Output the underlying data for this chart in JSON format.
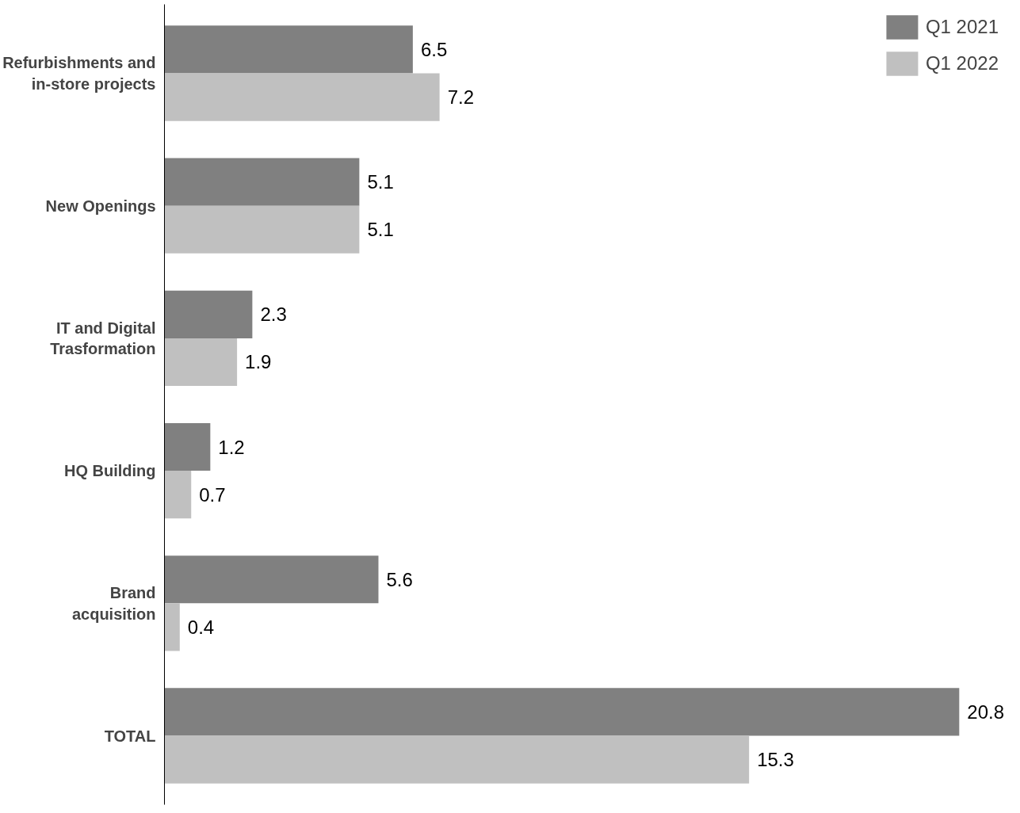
{
  "chart_data": {
    "type": "bar",
    "orientation": "horizontal",
    "categories": [
      "Refurbishments and in-store projects",
      "New Openings",
      "IT and Digital Trasformation",
      "HQ Building",
      "Brand acquisition",
      "TOTAL"
    ],
    "series": [
      {
        "name": "Q1 2021",
        "color": "#808080",
        "values": [
          6.5,
          5.1,
          2.3,
          1.2,
          5.6,
          20.8
        ]
      },
      {
        "name": "Q1 2022",
        "color": "#c0c0c0",
        "values": [
          7.2,
          5.1,
          1.9,
          0.7,
          0.4,
          15.3
        ]
      }
    ],
    "data_labels": true,
    "legend": "top right",
    "grid": false
  }
}
